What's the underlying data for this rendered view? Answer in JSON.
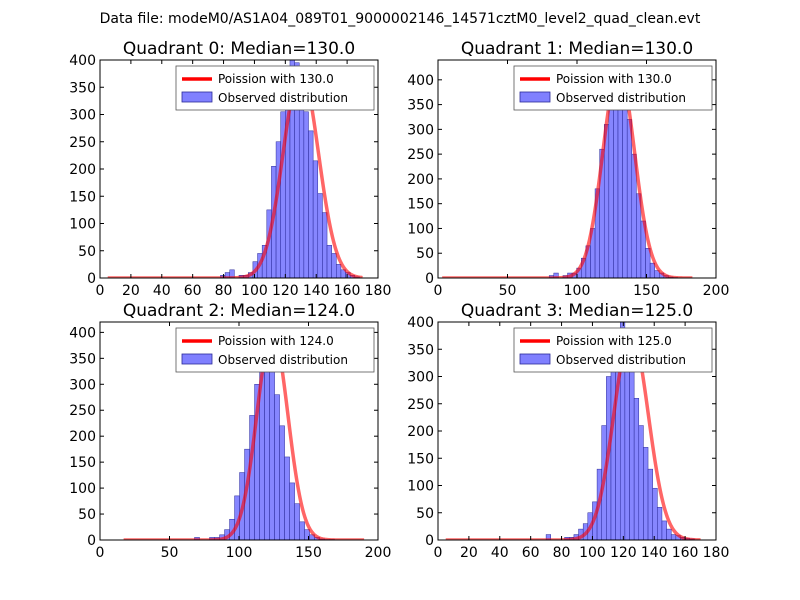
{
  "figure": {
    "suptitle": "Data file: modeM0/AS1A04_089T01_9000002146_14571cztM0_level2_quad_clean.evt"
  },
  "colors": {
    "bar_fill": "#8080ff",
    "bar_edge": "#2a2a9a",
    "fit_line": "#ff0000"
  },
  "chart_data": [
    {
      "type": "bar",
      "title": "Quadrant 0: Median=130.0",
      "xlabel": "",
      "ylabel": "",
      "xlim": [
        0,
        180
      ],
      "ylim": [
        0,
        400
      ],
      "xticks": [
        0,
        20,
        40,
        60,
        80,
        100,
        120,
        140,
        160,
        180
      ],
      "yticks": [
        0,
        50,
        100,
        150,
        200,
        250,
        300,
        350,
        400
      ],
      "legend": {
        "placement": "top-right",
        "entries": [
          "Poission with 130.0",
          "Observed distribution"
        ]
      },
      "histogram": {
        "bin_edges": [
          78,
          81,
          84,
          87,
          90,
          93,
          96,
          99,
          102,
          105,
          108,
          111,
          114,
          117,
          120,
          123,
          126,
          129,
          132,
          135,
          138,
          141,
          144,
          147,
          150,
          153,
          156,
          159,
          162,
          165,
          168
        ],
        "counts": [
          5,
          10,
          15,
          0,
          5,
          5,
          10,
          30,
          45,
          60,
          125,
          205,
          250,
          305,
          380,
          400,
          395,
          365,
          305,
          270,
          215,
          155,
          120,
          60,
          45,
          25,
          15,
          10,
          5,
          2
        ]
      },
      "fit": {
        "label": "Poission with 130.0",
        "mu": 130.0,
        "amplitude": 380,
        "x_range": [
          5,
          170
        ],
        "points": [
          [
            5,
            0
          ],
          [
            80,
            0
          ],
          [
            90,
            1
          ],
          [
            100,
            12
          ],
          [
            105,
            30
          ],
          [
            110,
            75
          ],
          [
            115,
            145
          ],
          [
            120,
            245
          ],
          [
            125,
            340
          ],
          [
            130,
            380
          ],
          [
            135,
            340
          ],
          [
            140,
            245
          ],
          [
            145,
            145
          ],
          [
            150,
            75
          ],
          [
            155,
            30
          ],
          [
            160,
            12
          ],
          [
            165,
            3
          ],
          [
            170,
            0
          ]
        ]
      }
    },
    {
      "type": "bar",
      "title": "Quadrant 1: Median=130.0",
      "xlabel": "",
      "ylabel": "",
      "xlim": [
        0,
        200
      ],
      "ylim": [
        0,
        440
      ],
      "xticks": [
        0,
        50,
        100,
        150,
        200
      ],
      "yticks": [
        0,
        50,
        100,
        150,
        200,
        250,
        300,
        350,
        400
      ],
      "legend": {
        "placement": "top-right",
        "entries": [
          "Poission with 130.0",
          "Observed distribution"
        ]
      },
      "histogram": {
        "bin_edges": [
          80,
          83.3,
          86.6,
          89.9,
          93.2,
          96.5,
          99.8,
          103.1,
          106.4,
          109.7,
          113,
          116.3,
          119.6,
          122.9,
          126.2,
          129.5,
          132.8,
          136.1,
          139.4,
          142.7,
          146,
          149.3,
          152.6,
          155.9,
          159.2,
          162.5,
          165.8,
          169.1,
          172.4
        ],
        "counts": [
          5,
          10,
          0,
          5,
          10,
          10,
          20,
          40,
          65,
          100,
          180,
          260,
          310,
          360,
          380,
          400,
          360,
          320,
          250,
          170,
          115,
          60,
          30,
          15,
          10,
          5,
          2,
          1
        ]
      },
      "fit": {
        "label": "Poission with 130.0",
        "mu": 130.0,
        "amplitude": 420,
        "x_range": [
          3,
          183
        ],
        "points": [
          [
            3,
            0
          ],
          [
            90,
            0
          ],
          [
            100,
            10
          ],
          [
            105,
            30
          ],
          [
            110,
            80
          ],
          [
            115,
            160
          ],
          [
            120,
            270
          ],
          [
            125,
            370
          ],
          [
            130,
            420
          ],
          [
            135,
            370
          ],
          [
            140,
            270
          ],
          [
            145,
            160
          ],
          [
            150,
            80
          ],
          [
            155,
            30
          ],
          [
            160,
            10
          ],
          [
            170,
            1
          ],
          [
            183,
            0
          ]
        ]
      }
    },
    {
      "type": "bar",
      "title": "Quadrant 2: Median=124.0",
      "xlabel": "",
      "ylabel": "",
      "xlim": [
        0,
        200
      ],
      "ylim": [
        0,
        420
      ],
      "xticks": [
        0,
        50,
        100,
        150,
        200
      ],
      "yticks": [
        0,
        50,
        100,
        150,
        200,
        250,
        300,
        350,
        400
      ],
      "legend": {
        "placement": "top-right",
        "entries": [
          "Poission with 124.0",
          "Observed distribution"
        ]
      },
      "histogram": {
        "bin_edges": [
          68,
          71.6,
          75.2,
          78.8,
          82.4,
          86,
          89.6,
          93.2,
          96.8,
          100.4,
          104,
          107.6,
          111.2,
          114.8,
          118.4,
          122,
          125.6,
          129.2,
          132.8,
          136.4,
          140,
          143.6,
          147.2,
          150.8,
          154.4,
          158,
          161.6,
          165.2,
          168.8
        ],
        "counts": [
          5,
          0,
          0,
          5,
          5,
          10,
          20,
          40,
          85,
          130,
          175,
          240,
          300,
          390,
          400,
          360,
          280,
          220,
          160,
          110,
          70,
          35,
          20,
          10,
          5,
          2,
          1,
          1
        ]
      },
      "fit": {
        "label": "Poission with 124.0",
        "mu": 124.0,
        "amplitude": 400,
        "x_range": [
          17,
          190
        ],
        "points": [
          [
            17,
            0
          ],
          [
            85,
            0
          ],
          [
            95,
            10
          ],
          [
            100,
            35
          ],
          [
            105,
            90
          ],
          [
            110,
            180
          ],
          [
            115,
            280
          ],
          [
            120,
            370
          ],
          [
            124,
            400
          ],
          [
            128,
            370
          ],
          [
            133,
            280
          ],
          [
            138,
            180
          ],
          [
            143,
            90
          ],
          [
            148,
            35
          ],
          [
            153,
            10
          ],
          [
            160,
            2
          ],
          [
            190,
            0
          ]
        ]
      }
    },
    {
      "type": "bar",
      "title": "Quadrant 3: Median=125.0",
      "xlabel": "",
      "ylabel": "",
      "xlim": [
        0,
        180
      ],
      "ylim": [
        0,
        400
      ],
      "xticks": [
        0,
        20,
        40,
        60,
        80,
        100,
        120,
        140,
        160,
        180
      ],
      "yticks": [
        0,
        50,
        100,
        150,
        200,
        250,
        300,
        350,
        400
      ],
      "legend": {
        "placement": "top-right",
        "entries": [
          "Poission with 125.0",
          "Observed distribution"
        ]
      },
      "histogram": {
        "bin_edges": [
          70,
          73,
          76,
          79,
          82,
          85,
          88,
          91,
          94,
          97,
          100,
          103,
          106,
          109,
          112,
          115,
          118,
          121,
          124,
          127,
          130,
          133,
          136,
          139,
          142,
          145,
          148,
          151,
          154,
          157,
          160,
          163,
          166
        ],
        "counts": [
          10,
          0,
          0,
          0,
          5,
          5,
          10,
          20,
          30,
          50,
          70,
          130,
          210,
          300,
          360,
          380,
          400,
          360,
          320,
          260,
          210,
          170,
          130,
          95,
          60,
          35,
          20,
          10,
          8,
          5,
          3,
          2
        ]
      },
      "fit": {
        "label": "Poission with 125.0",
        "mu": 125.0,
        "amplitude": 380,
        "x_range": [
          5,
          170
        ],
        "points": [
          [
            5,
            0
          ],
          [
            80,
            0
          ],
          [
            90,
            3
          ],
          [
            95,
            12
          ],
          [
            100,
            40
          ],
          [
            105,
            95
          ],
          [
            110,
            180
          ],
          [
            115,
            280
          ],
          [
            120,
            355
          ],
          [
            125,
            380
          ],
          [
            130,
            355
          ],
          [
            135,
            280
          ],
          [
            140,
            180
          ],
          [
            145,
            95
          ],
          [
            150,
            40
          ],
          [
            155,
            12
          ],
          [
            160,
            3
          ],
          [
            170,
            0
          ]
        ]
      }
    }
  ]
}
